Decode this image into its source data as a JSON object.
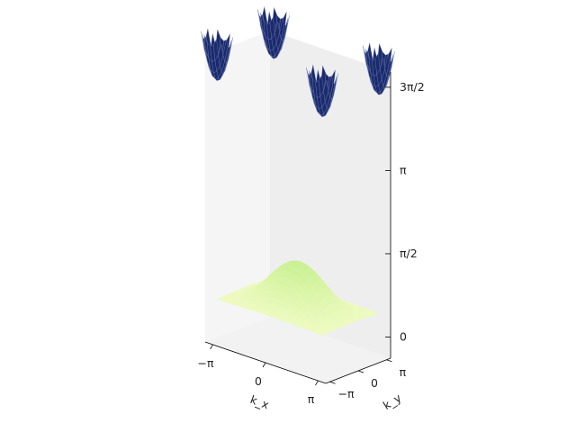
{
  "chart_data": {
    "type": "surface3d",
    "title": "",
    "x_axis": {
      "label": "k_x",
      "ticks": [
        {
          "value": -3.1416,
          "label": "−π"
        },
        {
          "value": 0,
          "label": "0"
        },
        {
          "value": 3.1416,
          "label": "π"
        }
      ],
      "lim": [
        -3.6,
        3.6
      ]
    },
    "y_axis": {
      "label": "k_y",
      "ticks": [
        {
          "value": -3.1416,
          "label": "−π"
        },
        {
          "value": 0,
          "label": "0"
        },
        {
          "value": 3.1416,
          "label": "π"
        }
      ],
      "lim": [
        -3.6,
        3.6
      ]
    },
    "z_axis": {
      "ticks": [
        {
          "value": 0,
          "label": "0"
        },
        {
          "value": 1.5708,
          "label": "π/2"
        },
        {
          "value": 3.1416,
          "label": "π"
        },
        {
          "value": 4.7124,
          "label": "3π/2"
        }
      ],
      "lim": [
        -0.4,
        5.0
      ]
    },
    "surfaces": [
      {
        "name": "lower band",
        "colormap": "YlGn (light)",
        "z_range": [
          0.0,
          1.3
        ]
      },
      {
        "name": "upper band pockets",
        "color": "#1b2a6b",
        "z_range": [
          4.5,
          5.3
        ]
      }
    ],
    "view": {
      "elev": 20,
      "azim": -60
    },
    "grid": false,
    "colors": {
      "pane_left": "#f5f5f5",
      "pane_back": "#eeeeee",
      "floor": "#f2f2f2",
      "band_high": "#1b2a6b"
    }
  }
}
